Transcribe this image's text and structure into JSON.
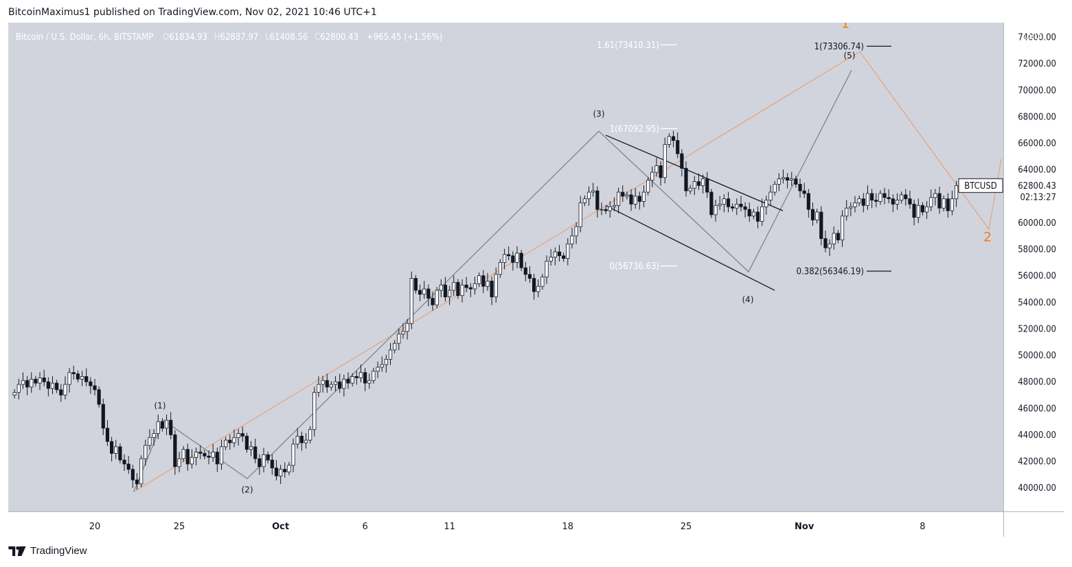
{
  "caption": "BitcoinMaximus1 published on TradingView.com, Nov 02, 2021 10:46 UTC+1",
  "footer": {
    "brand": "TradingView"
  },
  "colors": {
    "plot_bg": "#d1d4dc",
    "axis_bg": "#ffffff",
    "up": "#ffffff",
    "down": "#131722",
    "orange": "#f57c00",
    "trend_orange": "#e4a37f",
    "wave_gray": "#7f838c",
    "channel": "#131722",
    "fib_white": "#ffffff",
    "fib_black": "#131722"
  },
  "header": {
    "symbol": "Bitcoin / U.S. Dollar, 6h, BITSTAMP",
    "open_label": "O",
    "open": "61834.93",
    "high_label": "H",
    "high": "62887.97",
    "low_label": "L",
    "low": "61408.56",
    "close_label": "C",
    "close": "62800.43",
    "change": "+965.45 (+1.56%)"
  },
  "price_tag": {
    "symbol": "BTCUSD",
    "price": "62800.43",
    "countdown": "02:13:27"
  },
  "chart_data": {
    "type": "candlestick",
    "currency": "USD",
    "ylim": [
      38000,
      75000
    ],
    "y_ticks": [
      40000,
      42000,
      44000,
      46000,
      48000,
      50000,
      52000,
      54000,
      56000,
      58000,
      60000,
      62000,
      64000,
      66000,
      68000,
      70000,
      72000,
      74000
    ],
    "y_tick_labels": [
      "40000.00",
      "42000.00",
      "44000.00",
      "46000.00",
      "48000.00",
      "50000.00",
      "52000.00",
      "54000.00",
      "56000.00",
      "58000.00",
      "60000.00",
      "62000.00",
      "64000.00",
      "66000.00",
      "68000.00",
      "70000.00",
      "72000.00",
      "74000.00"
    ],
    "x_ticks": [
      "20",
      "25",
      "Oct",
      "6",
      "11",
      "18",
      "25",
      "Nov",
      "8"
    ],
    "x_tick_days": [
      20,
      25,
      31,
      36,
      41,
      48,
      55,
      62,
      69
    ],
    "x_range_days": [
      15,
      75
    ],
    "candles_6h": {
      "start_day": 15.25,
      "close": [
        47200,
        47800,
        48100,
        47600,
        48200,
        47900,
        48300,
        48000,
        47500,
        47900,
        47400,
        47000,
        47800,
        48700,
        48600,
        48200,
        48400,
        48000,
        47700,
        47400,
        46300,
        44500,
        43500,
        42600,
        43100,
        42100,
        41800,
        41400,
        40600,
        40300,
        42200,
        43200,
        43800,
        44100,
        45000,
        44500,
        45100,
        44000,
        41600,
        42200,
        42900,
        41800,
        42300,
        42700,
        42600,
        42400,
        42300,
        42700,
        41800,
        43100,
        43600,
        43400,
        43800,
        44100,
        43900,
        42900,
        43100,
        42200,
        41600,
        42500,
        42100,
        41500,
        40900,
        41400,
        41200,
        41700,
        43300,
        43900,
        43400,
        43600,
        44400,
        47200,
        47800,
        48100,
        47600,
        47800,
        48000,
        47500,
        48200,
        47900,
        48400,
        48300,
        48700,
        47900,
        48100,
        48800,
        49100,
        49300,
        49700,
        50400,
        50900,
        51600,
        51800,
        52400,
        55800,
        54900,
        54600,
        55000,
        54300,
        53800,
        54900,
        55300,
        54400,
        54900,
        55500,
        54500,
        55300,
        55100,
        55000,
        55400,
        56000,
        55200,
        55600,
        54400,
        56100,
        57000,
        57600,
        57500,
        57000,
        57700,
        56600,
        56100,
        55800,
        54800,
        55200,
        55900,
        57100,
        57400,
        57800,
        57500,
        57300,
        58400,
        59000,
        59700,
        61500,
        61800,
        62300,
        62400,
        61000,
        61000,
        60900,
        61200,
        61300,
        62300,
        62000,
        62100,
        61400,
        62000,
        61600,
        62300,
        63200,
        63800,
        64300,
        63400,
        65900,
        66500,
        66200,
        65200,
        64100,
        62400,
        62600,
        63100,
        62800,
        63300,
        62300,
        60600,
        61300,
        61400,
        61800,
        61200,
        61100,
        61400,
        61200,
        61000,
        60500,
        60800,
        60100,
        61200,
        61700,
        62300,
        62900,
        63300,
        63400,
        63200,
        63300,
        62900,
        62400,
        62200,
        61000,
        60200,
        60800,
        58800,
        58100,
        58400,
        59200,
        58700,
        60500,
        61100,
        61200,
        61500,
        61800,
        61300,
        62200,
        61700,
        61600,
        62200,
        61900,
        61800,
        61400,
        61700,
        62100,
        61800,
        61400,
        60400,
        61300,
        60800,
        61200,
        61900,
        62200,
        61100,
        61800,
        60900,
        61800,
        62800
      ]
    },
    "wave_labels": [
      {
        "text": "(1)",
        "day": 24.0,
        "price": 46000
      },
      {
        "text": "(2)",
        "day": 29.8,
        "price": 39650
      },
      {
        "text": "(3)",
        "day": 19.2,
        "price": 68000,
        "note": "Oct 19 — (3)"
      },
      {
        "text": "(4)",
        "day": 29.0,
        "price": 54000,
        "note": "Oct 29 — (4)"
      },
      {
        "text": "(5)",
        "day": 3.2,
        "price": 72400,
        "note": "Nov 3 — (5)"
      }
    ],
    "wave_labels_display": [
      "(1)",
      "(2)",
      "(3)",
      "(4)",
      "(5)"
    ],
    "higher_degree_labels": [
      "1",
      "2"
    ],
    "fib_levels": [
      {
        "label": "1.61(73410.31)",
        "price": 73410.31
      },
      {
        "label": "1(67092.95)",
        "price": 67092.95
      },
      {
        "label": "0(56736.63)",
        "price": 56736.63
      },
      {
        "label": "1(73306.74)",
        "price": 73306.74
      },
      {
        "label": "0.382(56346.19)",
        "price": 56346.19
      }
    ],
    "wave_path_prices": [
      39700,
      45100,
      40700,
      66900,
      56300,
      71500
    ],
    "trend_line_prices": [
      39700,
      72900,
      59500,
      64800
    ],
    "channel_prices": {
      "upper": [
        66600,
        60900
      ],
      "lower": [
        61300,
        54900
      ]
    }
  }
}
